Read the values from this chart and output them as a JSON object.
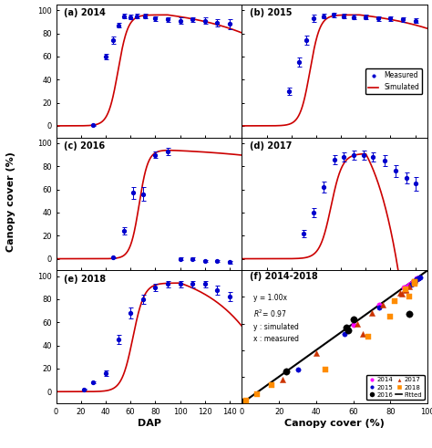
{
  "panels": {
    "a": {
      "label": "(a) 2014",
      "x": [
        30,
        40,
        46,
        50,
        55,
        60,
        65,
        72,
        80,
        90,
        100,
        110,
        120,
        130,
        140
      ],
      "y": [
        0.5,
        60,
        74,
        87,
        95,
        94,
        95,
        95,
        93,
        92,
        91,
        92,
        91,
        89,
        88
      ],
      "yerr": [
        0.5,
        2.5,
        3,
        2,
        2,
        2,
        2,
        2,
        2,
        2,
        3,
        2,
        3,
        3,
        4
      ]
    },
    "b": {
      "label": "(b) 2015",
      "x": [
        38,
        46,
        52,
        58,
        66,
        74,
        82,
        90,
        100,
        110,
        120,
        130,
        140
      ],
      "y": [
        30,
        55,
        74,
        93,
        95,
        96,
        95,
        94,
        94,
        93,
        93,
        92,
        91
      ],
      "yerr": [
        3,
        4,
        4,
        3,
        2,
        2,
        2,
        2,
        2,
        2,
        2,
        2,
        2
      ]
    },
    "c": {
      "label": "(c) 2016",
      "x": [
        46,
        55,
        62,
        70,
        80,
        90,
        100,
        110,
        120,
        130,
        140
      ],
      "y": [
        1,
        24,
        57,
        56,
        90,
        93,
        0,
        0,
        -2,
        -2,
        -3
      ],
      "yerr": [
        0.5,
        3,
        5,
        6,
        3,
        3,
        1,
        1,
        1,
        1,
        1
      ]
    },
    "d": {
      "label": "(d) 2017",
      "x": [
        50,
        58,
        66,
        75,
        82,
        90,
        98,
        106,
        115,
        124,
        133,
        140
      ],
      "y": [
        22,
        40,
        62,
        86,
        88,
        90,
        90,
        88,
        85,
        76,
        70,
        65
      ],
      "yerr": [
        3,
        4,
        5,
        4,
        4,
        4,
        4,
        4,
        5,
        5,
        5,
        6
      ]
    },
    "e": {
      "label": "(e) 2018",
      "x": [
        22,
        30,
        40,
        50,
        60,
        70,
        80,
        90,
        100,
        110,
        120,
        130,
        140
      ],
      "y": [
        2,
        8,
        16,
        45,
        68,
        80,
        90,
        93,
        93,
        93,
        93,
        88,
        82
      ],
      "yerr": [
        0.5,
        1,
        2,
        4,
        5,
        4,
        3,
        3,
        3,
        3,
        3,
        4,
        4
      ]
    }
  },
  "scatter_2014": {
    "x": [
      1,
      60,
      74,
      87,
      94,
      95,
      95,
      95,
      93,
      92,
      91,
      91,
      90,
      89,
      88
    ],
    "y": [
      1,
      59,
      74,
      87,
      94,
      94,
      94,
      94,
      92,
      91,
      90,
      90,
      89,
      88,
      87
    ],
    "color": "#ff00ff",
    "marker": "o",
    "ms": 15
  },
  "scatter_2015": {
    "x": [
      30,
      55,
      74,
      93,
      95,
      96,
      95,
      94,
      94,
      93,
      93,
      92,
      91
    ],
    "y": [
      25,
      52,
      72,
      91,
      94,
      95,
      94,
      93,
      93,
      92,
      91,
      90,
      89
    ],
    "color": "#0000cd",
    "marker": "o",
    "ms": 15
  },
  "scatter_2016": {
    "x": [
      1,
      24,
      57,
      56,
      60,
      90
    ],
    "y": [
      1,
      24,
      55,
      57,
      63,
      67
    ],
    "color": "#000000",
    "marker": "o",
    "ms": 25
  },
  "scatter_2017": {
    "x": [
      22,
      40,
      62,
      86,
      88,
      90,
      88,
      85,
      76,
      70,
      65
    ],
    "y": [
      18,
      38,
      60,
      82,
      85,
      88,
      86,
      83,
      74,
      68,
      52
    ],
    "color": "#cc3300",
    "marker": "^",
    "ms": 20
  },
  "scatter_2018": {
    "x": [
      2,
      8,
      16,
      45,
      68,
      80,
      90,
      93,
      93,
      93,
      88,
      82
    ],
    "y": [
      2,
      7,
      14,
      25,
      50,
      65,
      80,
      90,
      91,
      91,
      86,
      77
    ],
    "color": "#ff8c00",
    "marker": "s",
    "ms": 20
  },
  "colors": {
    "measured": "#0000cd",
    "simulated": "#cc0000"
  },
  "xlim_dap": [
    0,
    150
  ],
  "ylim_dap": [
    -10,
    105
  ],
  "xlim_sc": [
    0,
    100
  ],
  "ylim_sc": [
    0,
    100
  ],
  "yticks_dap": [
    0,
    20,
    40,
    60,
    80,
    100
  ],
  "xticks_dap": [
    0,
    20,
    40,
    60,
    80,
    100,
    120,
    140
  ],
  "ticks_sc": [
    0,
    20,
    40,
    60,
    80,
    100
  ],
  "ylabel": "Canopy cover (%)",
  "xlabel_dap": "DAP",
  "xlabel_sc": "Canopy cover (%)"
}
